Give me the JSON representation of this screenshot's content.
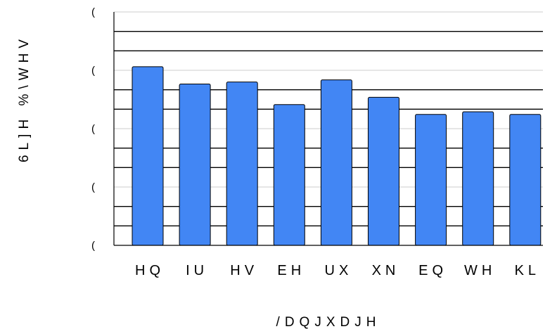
{
  "chart_data": {
    "type": "bar",
    "categories": [
      "HQ",
      "IU",
      "HV",
      "EH",
      "UX",
      "XN",
      "EQ",
      "WH",
      "KL"
    ],
    "values": [
      6.89,
      6.22,
      6.3,
      5.43,
      6.38,
      5.71,
      5.05,
      5.15,
      5.05
    ],
    "ylim": [
      0,
      9
    ],
    "ytick_values": [
      0,
      2.25,
      4.5,
      6.75,
      9
    ],
    "ytick_labels": [
      "(",
      "(",
      "(",
      "(",
      "("
    ],
    "xlabel": "/DQJXDJH",
    "ylabel": "6L]H %\\WHV",
    "grid": true,
    "legend": "none",
    "bar_color": "#4286f4",
    "bar_stroke": "#000000"
  }
}
